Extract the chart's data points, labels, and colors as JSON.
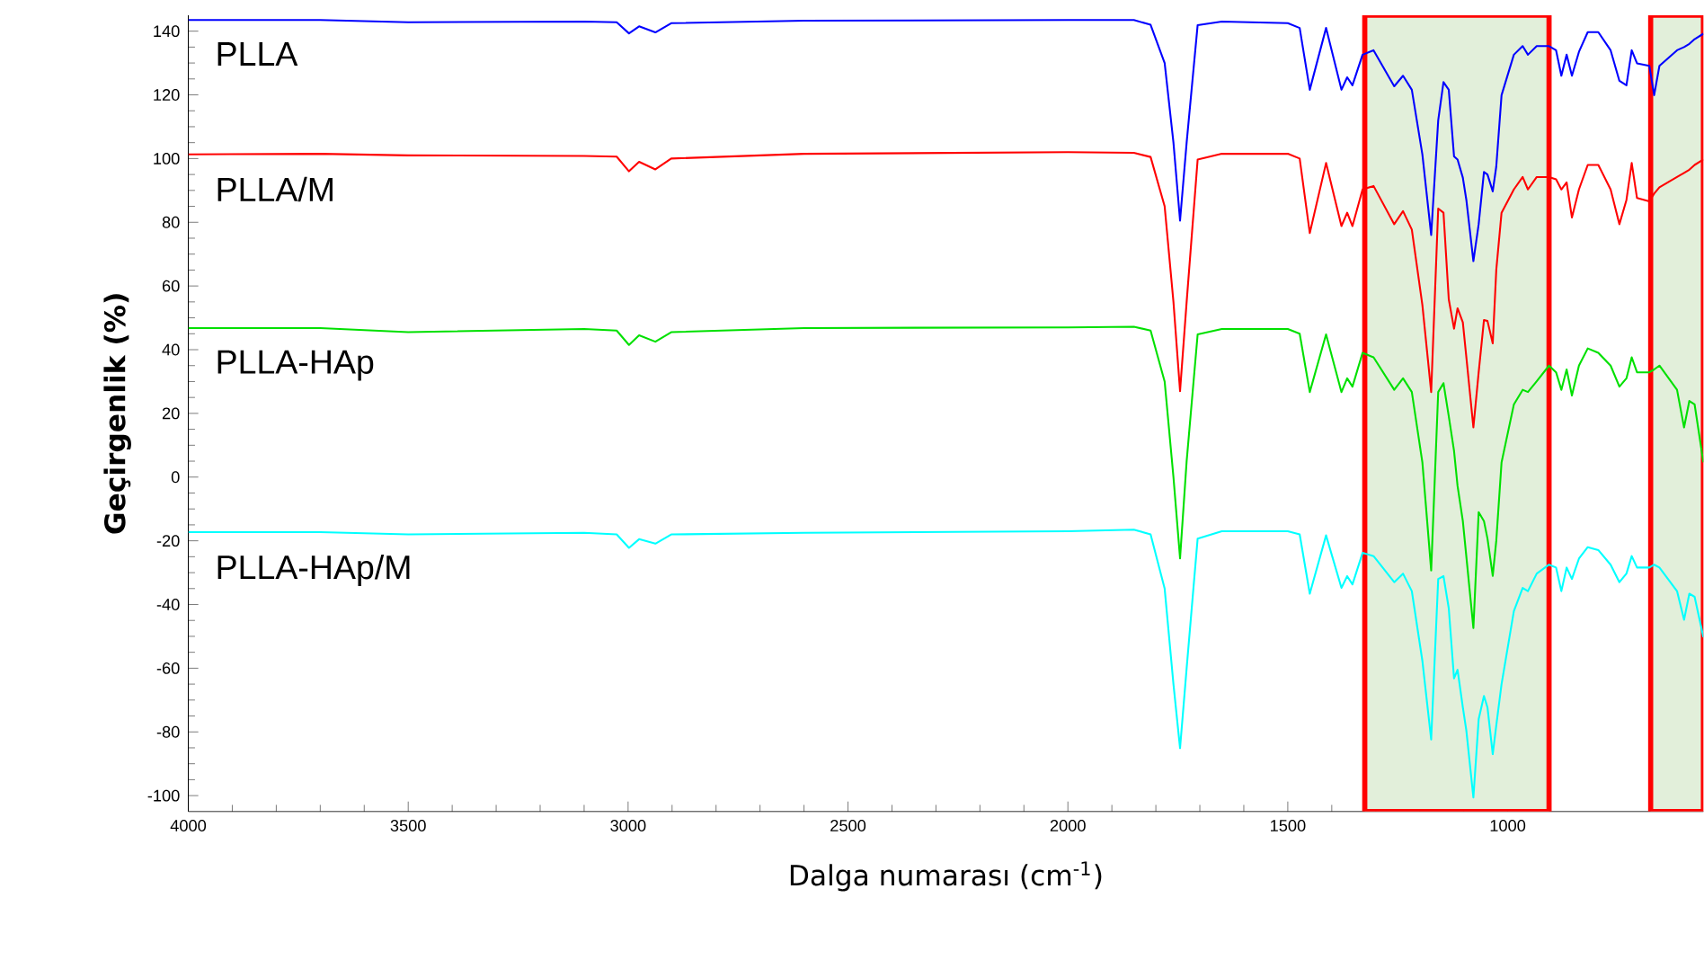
{
  "chart_data": {
    "type": "line",
    "xlabel": "Dalga numarası (cm$^{-1}$)",
    "ylabel": "Geçirgenlik (%)",
    "xlim": [
      4000,
      555
    ],
    "ylim": [
      -105,
      145
    ],
    "xticks": [
      4000,
      3500,
      3000,
      2500,
      2000,
      1500,
      1000
    ],
    "yticks": [
      -100,
      -80,
      -60,
      -40,
      -20,
      0,
      20,
      40,
      60,
      80,
      100,
      120,
      140
    ],
    "bands": [
      {
        "axis": "x",
        "from": 1325,
        "to": 906,
        "color": "#e2efda"
      },
      {
        "axis": "x",
        "from": 675,
        "to": 555,
        "color": "#e2efda"
      }
    ],
    "x": [
      4000,
      3700,
      3500,
      3100,
      3026,
      2998,
      2975,
      2938,
      2902,
      2600,
      2000,
      1850,
      1812,
      1780,
      1760,
      1745,
      1730,
      1705,
      1650,
      1500,
      1473,
      1450,
      1413,
      1378,
      1365,
      1353,
      1330,
      1305,
      1258,
      1238,
      1218,
      1194,
      1174,
      1158,
      1146,
      1134,
      1122,
      1114,
      1102,
      1094,
      1078,
      1066,
      1054,
      1046,
      1034,
      1026,
      1014,
      986,
      966,
      954,
      934,
      906,
      890,
      878,
      866,
      854,
      838,
      818,
      794,
      766,
      746,
      730,
      718,
      706,
      678,
      667,
      655,
      615,
      599,
      587,
      575,
      555
    ],
    "series": [
      {
        "name": "PLLA",
        "color": "#0000ff",
        "values": [
          143.5,
          143.5,
          142.8,
          143,
          142.8,
          139.3,
          141.5,
          139.6,
          142.5,
          143.3,
          143.5,
          143.5,
          142,
          130,
          105,
          80.5,
          105,
          141.9,
          143,
          142.5,
          141,
          121.6,
          141,
          121.6,
          125.5,
          123,
          132.6,
          134,
          122.7,
          126,
          121.6,
          101.3,
          76,
          112,
          124,
          121.6,
          100.7,
          99.7,
          94,
          87,
          67.8,
          79.4,
          95.8,
          95,
          89.7,
          97.5,
          119.9,
          132.6,
          135.3,
          132.6,
          135.3,
          135.3,
          134,
          126,
          132.6,
          126,
          133.5,
          139.7,
          139.7,
          134,
          124.4,
          123,
          134,
          129.9,
          129.1,
          119.9,
          129.1,
          134,
          135,
          136,
          137.5,
          139.2
        ]
      },
      {
        "name": "PLLA/M",
        "color": "#ff0000",
        "values": [
          101.3,
          101.5,
          101,
          100.8,
          100.6,
          96,
          99,
          96.6,
          100,
          101.5,
          102,
          101.8,
          100.5,
          85,
          55,
          27,
          55,
          99.7,
          101.5,
          101.5,
          100,
          76.6,
          98.6,
          78.8,
          83,
          78.8,
          90.3,
          91.4,
          79.4,
          83.5,
          77.7,
          54,
          26.7,
          84.3,
          83,
          55.8,
          46.6,
          53,
          48.6,
          37.6,
          15.6,
          32.9,
          49.3,
          49,
          42,
          65,
          83,
          90.3,
          94.2,
          90.3,
          94.2,
          94.2,
          93.5,
          90.3,
          92.5,
          81.5,
          90.3,
          98,
          98,
          90.3,
          79.4,
          87,
          98.6,
          87.6,
          86.6,
          89,
          91,
          94.2,
          95.5,
          96.5,
          98,
          99.7
        ]
      },
      {
        "name": "PLLA-HAp",
        "color": "#00e000",
        "values": [
          46.8,
          46.8,
          45.5,
          46.5,
          46,
          41.5,
          44.5,
          42.5,
          45.5,
          46.8,
          47,
          47.2,
          46,
          30,
          0,
          -25.5,
          5,
          44.8,
          46.5,
          46.5,
          45,
          26.7,
          44.8,
          26.7,
          31,
          28.4,
          39,
          37.6,
          27.4,
          31,
          26.7,
          4.6,
          -29.3,
          26.7,
          29.5,
          19.1,
          8.2,
          -2.8,
          -13.8,
          -25,
          -47.4,
          -11,
          -13.8,
          -19.3,
          -31,
          -20,
          4.6,
          22.8,
          27.4,
          26.7,
          30.1,
          35,
          32.9,
          27.4,
          33.8,
          25.6,
          35,
          40.4,
          39,
          35,
          28.4,
          31,
          37.6,
          32.9,
          32.9,
          33.8,
          35,
          27.4,
          15.6,
          23.9,
          22.8,
          4.6
        ]
      },
      {
        "name": "PLLA-HAp/M",
        "color": "#00ffff",
        "values": [
          -17.3,
          -17.3,
          -18,
          -17.5,
          -18,
          -22.2,
          -19.5,
          -20.9,
          -18,
          -17.5,
          -17,
          -16.5,
          -18,
          -35,
          -65,
          -85.1,
          -60,
          -19.3,
          -17,
          -17,
          -18,
          -36.6,
          -18.3,
          -34.8,
          -31.1,
          -33.7,
          -23.8,
          -24.8,
          -33,
          -30.3,
          -35.8,
          -57.7,
          -82.4,
          -32,
          -31.1,
          -41.2,
          -63.2,
          -60.5,
          -72.3,
          -79.6,
          -100.6,
          -76,
          -68.7,
          -72.3,
          -87,
          -78,
          -65,
          -42.1,
          -34.8,
          -35.8,
          -30.3,
          -27.5,
          -28.4,
          -35.8,
          -28.4,
          -32,
          -25.6,
          -22,
          -22.9,
          -27.5,
          -33,
          -30.3,
          -24.8,
          -28.4,
          -28.4,
          -27.5,
          -28.4,
          -35.8,
          -44.8,
          -36.6,
          -37.6,
          -50.3
        ]
      }
    ]
  }
}
